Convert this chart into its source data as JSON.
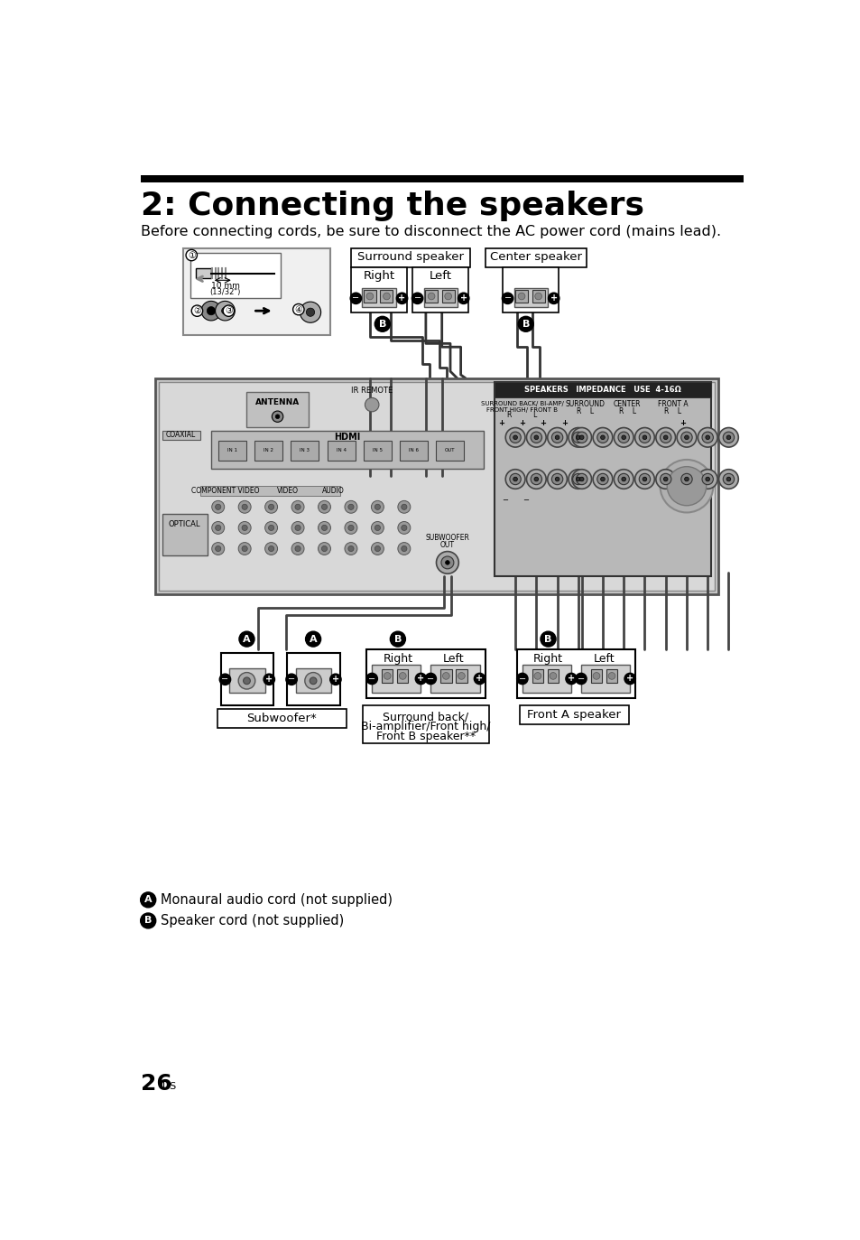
{
  "title": "2: Connecting the speakers",
  "page_number": "26",
  "page_suffix": "US",
  "intro_text": "Before connecting cords, be sure to disconnect the AC power cord (mains lead).",
  "bg_color": "#ffffff",
  "text_color": "#000000",
  "bar_color": "#000000",
  "title_fontsize": 26,
  "body_fontsize": 11.5,
  "page_num_fontsize": 16,
  "legend_a_text": "Monaural audio cord (not supplied)",
  "legend_b_text": "Speaker cord (not supplied)",
  "surround_label": "Surround speaker",
  "center_label": "Center speaker",
  "right_label": "Right",
  "left_label": "Left",
  "subwoofer_label": "Subwoofer*",
  "surround_back_label1": "Surround back/",
  "surround_back_label2": "Bi-amplifier/Front high/",
  "surround_back_label3": "Front B speaker**",
  "front_a_label": "Front A speaker"
}
